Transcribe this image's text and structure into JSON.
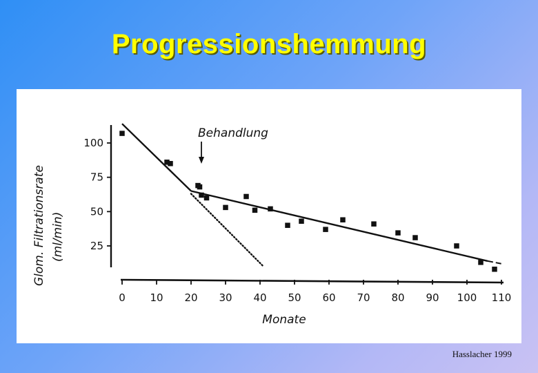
{
  "slide": {
    "title": "Progressionshemmung",
    "citation": "Hasslacher 1999"
  },
  "chart_data": {
    "type": "scatter",
    "title": "",
    "xlabel": "Monate",
    "ylabel_line1": "Glom. Filtrationsrate",
    "ylabel_line2": "(ml/min)",
    "xlim": [
      0,
      110
    ],
    "ylim": [
      0,
      115
    ],
    "x_ticks": [
      0,
      10,
      20,
      30,
      40,
      50,
      60,
      70,
      80,
      90,
      100,
      110
    ],
    "y_ticks": [
      25,
      50,
      75,
      100
    ],
    "annotation": {
      "text": "Behandlung",
      "x": 23
    },
    "series": [
      {
        "points": [
          [
            0,
            107
          ],
          [
            13,
            86
          ],
          [
            14,
            85
          ],
          [
            22,
            69
          ],
          [
            22.5,
            68
          ],
          [
            23,
            62
          ],
          [
            24.5,
            60
          ],
          [
            30,
            53
          ],
          [
            36,
            61
          ],
          [
            38.5,
            51
          ],
          [
            43,
            52
          ],
          [
            48,
            40
          ],
          [
            52,
            43
          ],
          [
            59,
            37
          ],
          [
            64,
            44
          ],
          [
            73,
            41
          ],
          [
            80,
            34.5
          ],
          [
            85,
            31
          ],
          [
            97,
            25
          ],
          [
            104,
            13
          ],
          [
            108,
            8
          ]
        ]
      }
    ],
    "fit_lines": [
      {
        "style": "solid",
        "points": [
          [
            0,
            114
          ],
          [
            20,
            65
          ]
        ]
      },
      {
        "style": "solid",
        "points": [
          [
            20,
            65
          ],
          [
            106,
            14
          ]
        ]
      },
      {
        "style": "dashed",
        "points": [
          [
            106,
            14
          ],
          [
            110,
            12
          ]
        ]
      },
      {
        "style": "dotted",
        "points": [
          [
            20,
            63
          ],
          [
            41,
            10
          ]
        ]
      }
    ]
  }
}
